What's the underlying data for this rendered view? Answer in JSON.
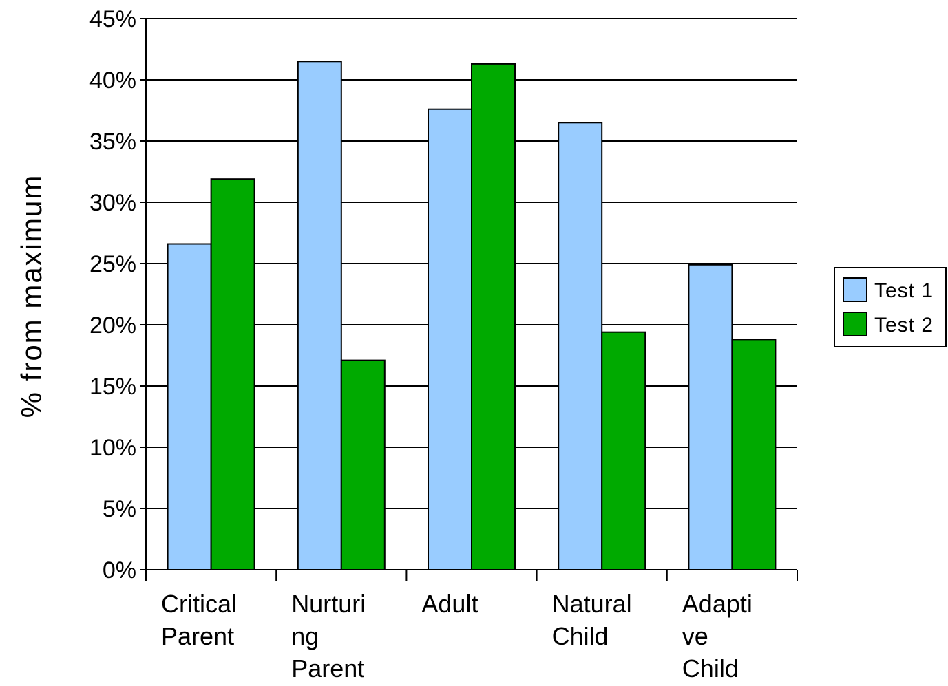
{
  "chart_data": {
    "type": "bar",
    "ylabel": "% from maximum",
    "xlabel": "",
    "ylim": [
      0,
      45
    ],
    "yticks": [
      "0%",
      "5%",
      "10%",
      "15%",
      "20%",
      "25%",
      "30%",
      "35%",
      "40%",
      "45%"
    ],
    "grid": true,
    "legend_position": "right",
    "categories": [
      [
        "Critical",
        "Parent"
      ],
      [
        "Nurturi",
        "ng",
        "Parent"
      ],
      [
        "Adult"
      ],
      [
        "Natural",
        "Child"
      ],
      [
        "Adapti",
        "ve",
        "Child"
      ]
    ],
    "series": [
      {
        "name": "Test 1",
        "color": "#99ccff",
        "values": [
          26.6,
          41.5,
          37.6,
          36.5,
          24.9
        ]
      },
      {
        "name": "Test 2",
        "color": "#00aa00",
        "values": [
          31.9,
          17.1,
          41.3,
          19.4,
          18.8
        ]
      }
    ]
  }
}
